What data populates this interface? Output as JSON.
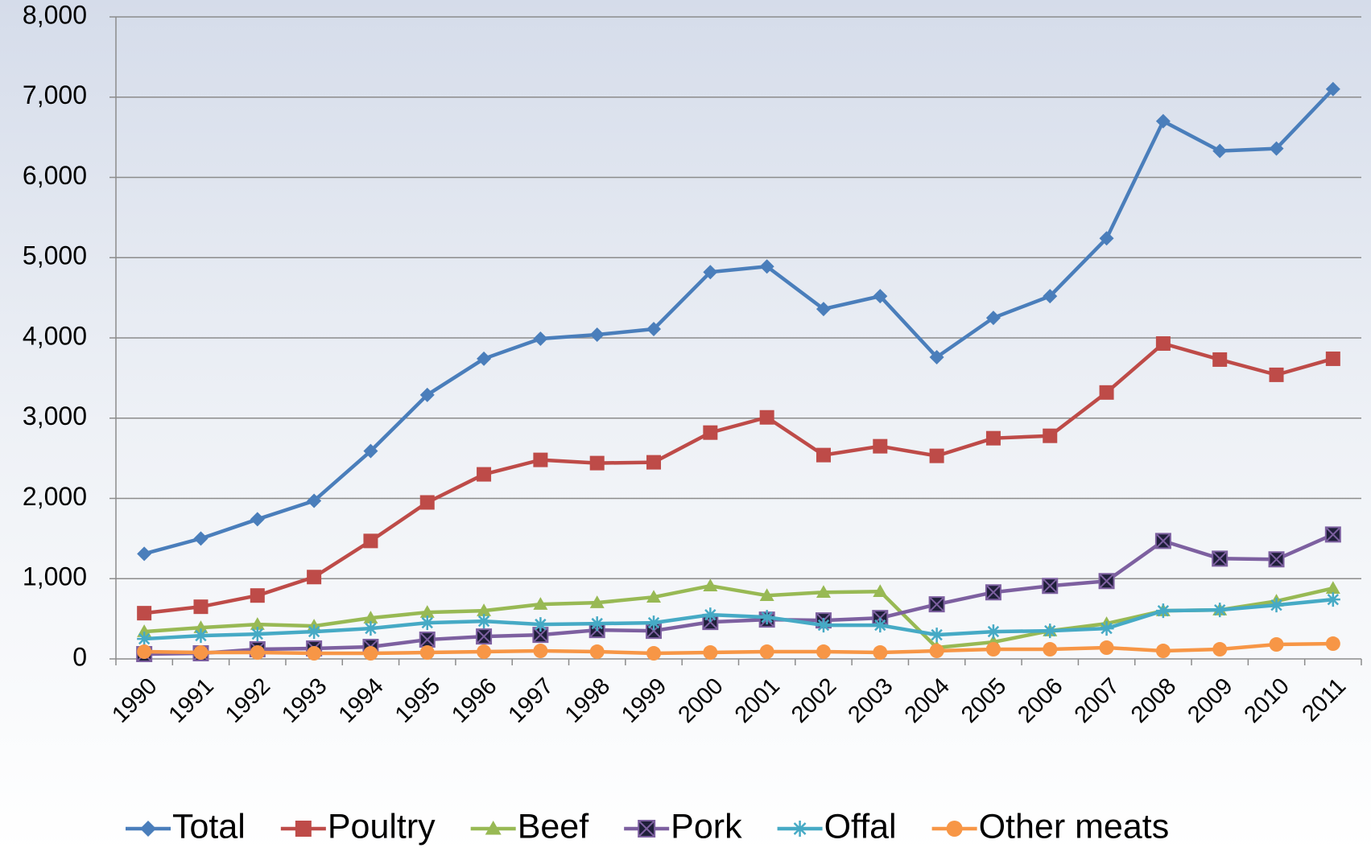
{
  "chart_data": {
    "type": "line",
    "categories": [
      "1990",
      "1991",
      "1992",
      "1993",
      "1994",
      "1995",
      "1996",
      "1997",
      "1998",
      "1999",
      "2000",
      "2001",
      "2002",
      "2003",
      "2004",
      "2005",
      "2006",
      "2007",
      "2008",
      "2009",
      "2010",
      "2011"
    ],
    "series": [
      {
        "name": "Total",
        "color": "#4a7ebb",
        "marker": "diamond",
        "values": [
          1310,
          1500,
          1740,
          1970,
          2590,
          3290,
          3740,
          3990,
          4040,
          4110,
          4820,
          4890,
          4360,
          4520,
          3760,
          4250,
          4520,
          5240,
          6700,
          6330,
          6360,
          7100
        ]
      },
      {
        "name": "Poultry",
        "color": "#be4b48",
        "marker": "square",
        "values": [
          570,
          650,
          790,
          1020,
          1470,
          1950,
          2300,
          2480,
          2440,
          2450,
          2820,
          3010,
          2540,
          2650,
          2530,
          2750,
          2780,
          3320,
          3930,
          3730,
          3540,
          3740
        ]
      },
      {
        "name": "Beef",
        "color": "#98b954",
        "marker": "triangle",
        "values": [
          340,
          390,
          430,
          410,
          510,
          580,
          600,
          680,
          700,
          770,
          910,
          790,
          830,
          840,
          140,
          210,
          350,
          440,
          600,
          610,
          720,
          880
        ]
      },
      {
        "name": "Pork",
        "color": "#7d60a0",
        "marker": "square-x",
        "marker_color": "#1f1f3a",
        "values": [
          60,
          70,
          120,
          130,
          150,
          240,
          280,
          300,
          360,
          350,
          460,
          490,
          480,
          510,
          680,
          830,
          910,
          970,
          1470,
          1250,
          1240,
          1550
        ]
      },
      {
        "name": "Offal",
        "color": "#46aac5",
        "marker": "star",
        "values": [
          250,
          290,
          310,
          340,
          380,
          450,
          470,
          430,
          440,
          450,
          550,
          520,
          420,
          420,
          300,
          340,
          350,
          380,
          600,
          610,
          670,
          740
        ]
      },
      {
        "name": "Other meats",
        "color": "#f79646",
        "marker": "circle",
        "values": [
          90,
          80,
          80,
          70,
          70,
          80,
          90,
          100,
          90,
          70,
          80,
          90,
          90,
          80,
          100,
          120,
          120,
          140,
          100,
          120,
          180,
          190
        ]
      }
    ],
    "ylim": [
      0,
      8000
    ],
    "yticks": [
      0,
      {
        "value": 1000,
        "label": "1,000"
      },
      {
        "value": 2000,
        "label": "2,000"
      },
      {
        "value": 3000,
        "label": "3,000"
      },
      {
        "value": 4000,
        "label": "4,000"
      },
      {
        "value": 5000,
        "label": "5,000"
      },
      {
        "value": 6000,
        "label": "6,000"
      },
      {
        "value": 7000,
        "label": "7,000"
      },
      {
        "value": 8000,
        "label": "8,000"
      }
    ],
    "grid": true,
    "legend": "bottom"
  }
}
